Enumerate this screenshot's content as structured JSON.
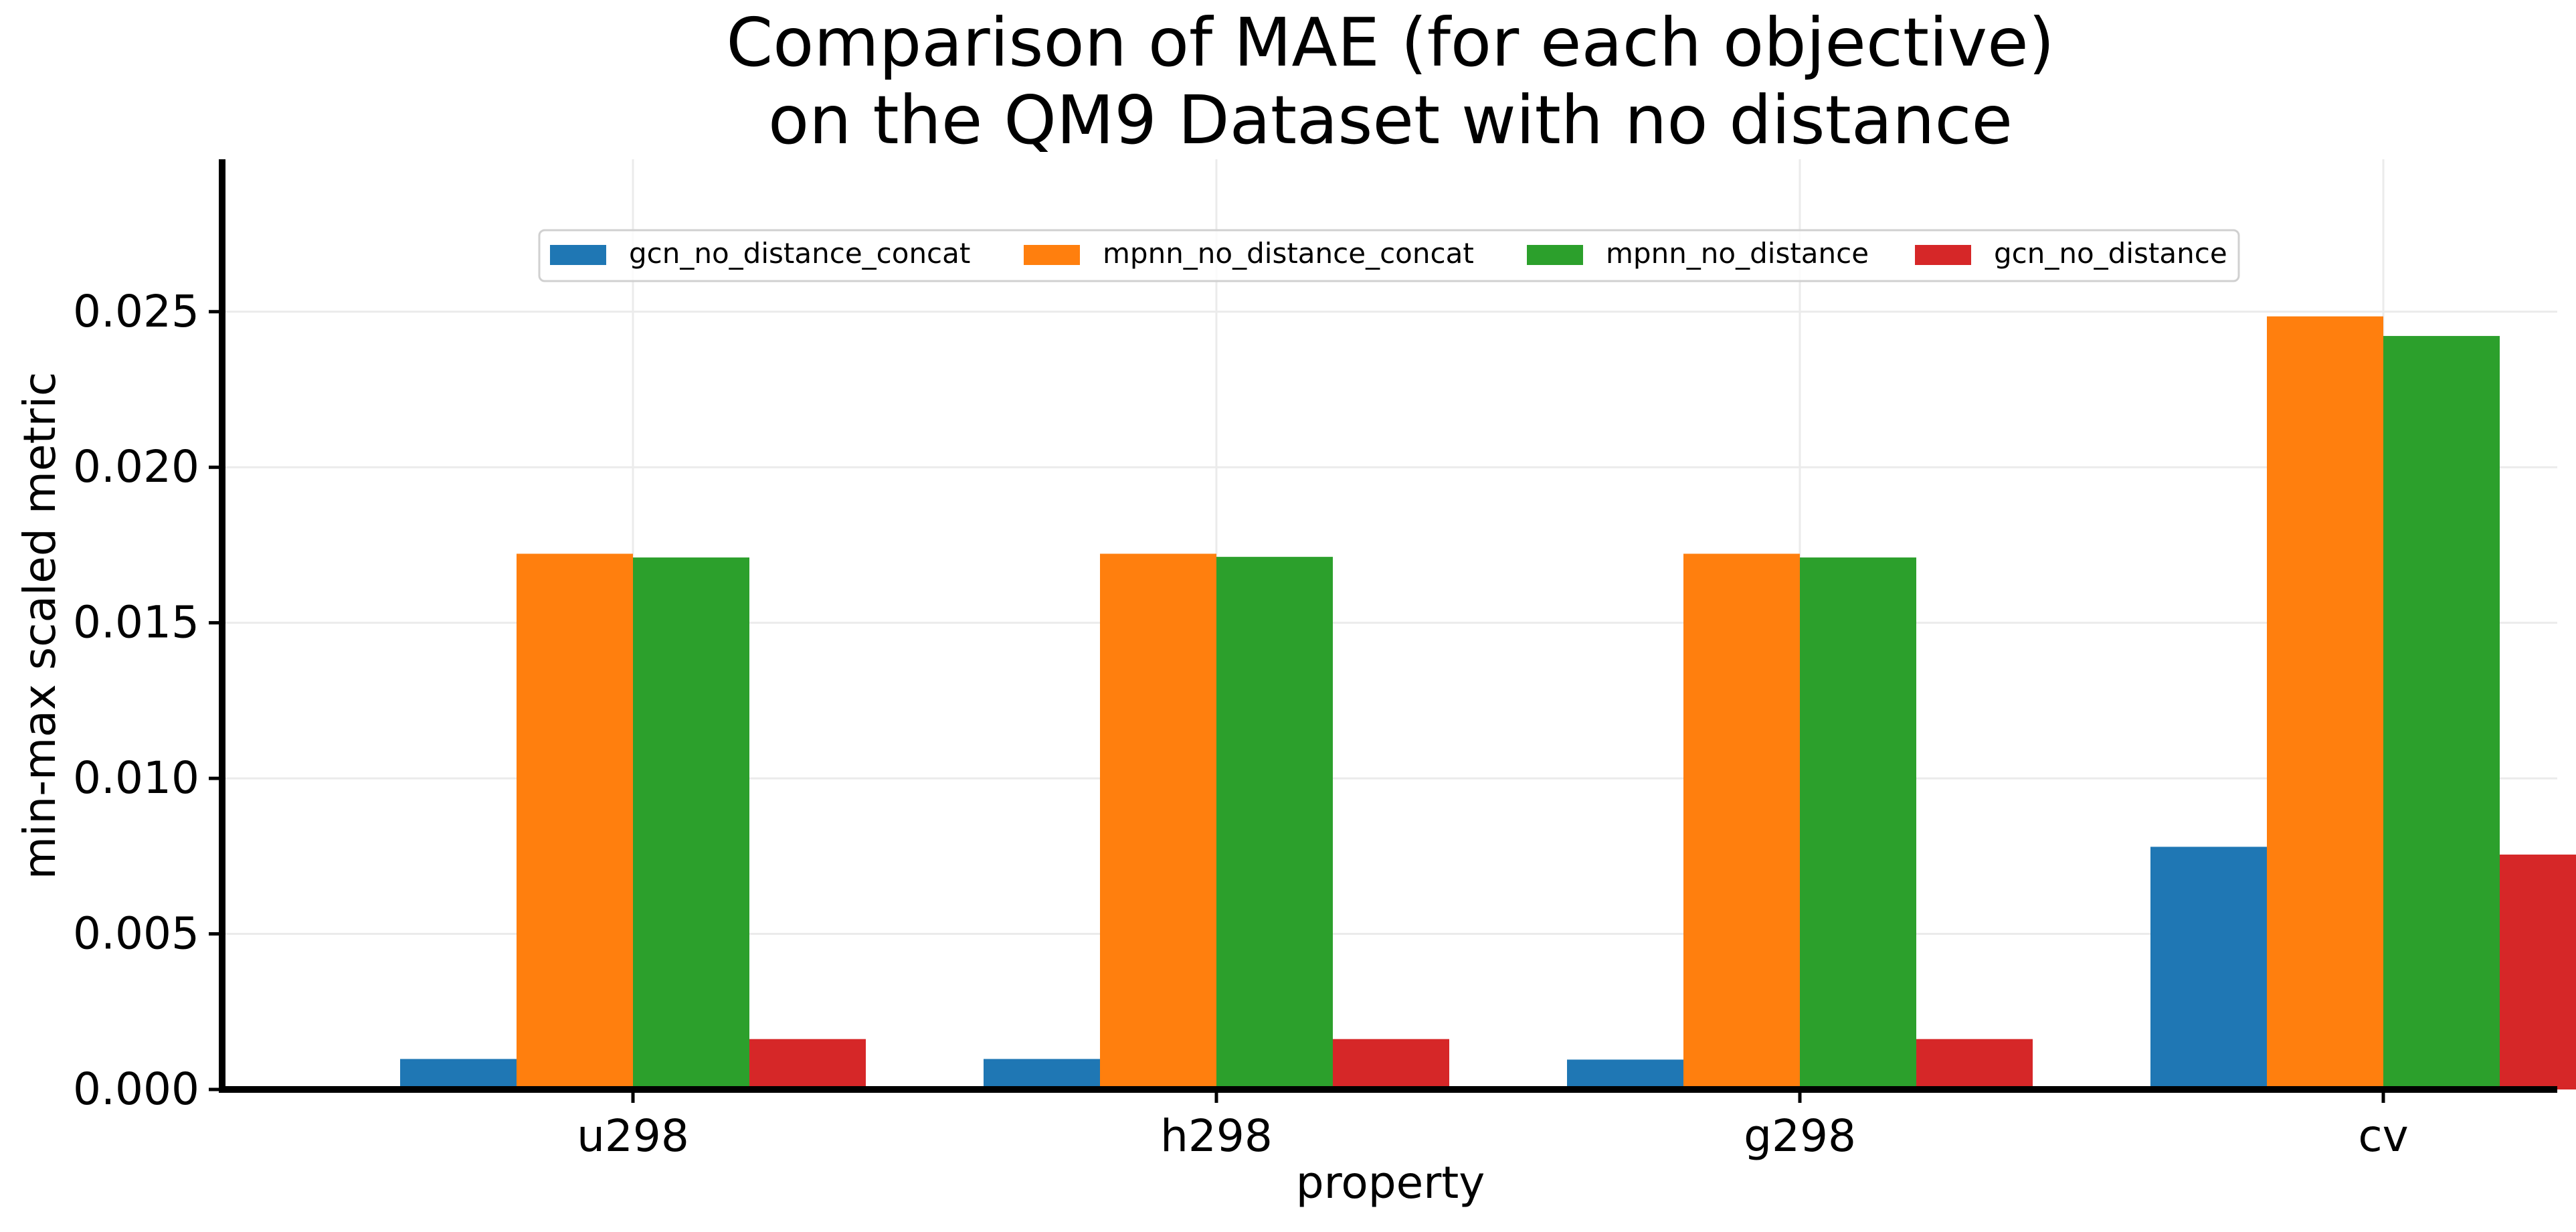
{
  "chart_data": {
    "type": "bar",
    "title_lines": [
      "Comparison of MAE (for each objective)",
      "on the QM9 Dataset with no distance"
    ],
    "xlabel": "property",
    "ylabel": "min-max scaled metric",
    "categories": [
      "u298",
      "h298",
      "g298",
      "cv"
    ],
    "yticks": [
      0.0,
      0.005,
      0.01,
      0.015,
      0.02,
      0.025
    ],
    "ytick_labels": [
      "0.000",
      "0.005",
      "0.010",
      "0.015",
      "0.020",
      "0.025"
    ],
    "ylim": [
      0,
      0.0299
    ],
    "grid": true,
    "legend_position": "top-center",
    "series": [
      {
        "name": "gcn_no_distance_concat",
        "color": "#1f77b4",
        "values": [
          0.00098,
          0.00098,
          0.00096,
          0.0078
        ]
      },
      {
        "name": "mpnn_no_distance_concat",
        "color": "#ff7f0e",
        "values": [
          0.01722,
          0.01722,
          0.01722,
          0.02485
        ]
      },
      {
        "name": "mpnn_no_distance",
        "color": "#2ca02c",
        "values": [
          0.0171,
          0.01712,
          0.0171,
          0.02422
        ]
      },
      {
        "name": "gcn_no_distance",
        "color": "#d62728",
        "values": [
          0.00162,
          0.00162,
          0.00162,
          0.00755
        ]
      }
    ]
  }
}
